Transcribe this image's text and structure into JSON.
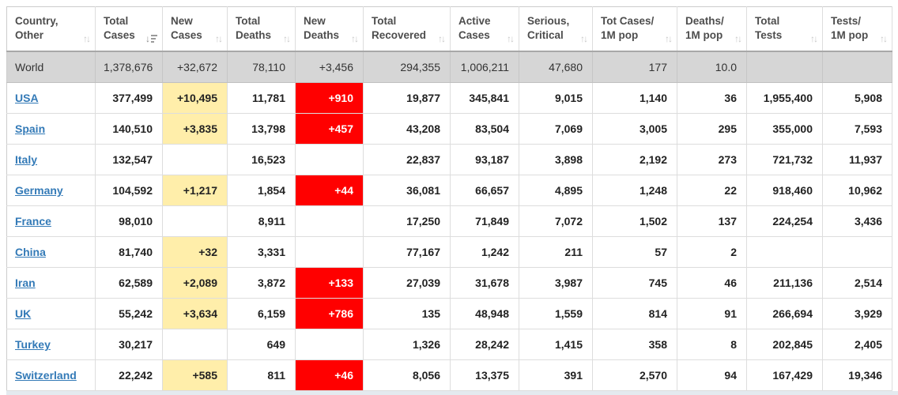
{
  "colors": {
    "link_blue": "#337ab7",
    "new_cases_bg": "#FFEEAA",
    "new_deaths_bg": "#FF0000",
    "new_deaths_text": "#FFFFFF",
    "world_row_bg": "#D6D6D6",
    "header_text": "#4D4D4D",
    "cell_text": "#222222",
    "border": "#DDDDDD"
  },
  "table": {
    "columns": [
      {
        "key": "country",
        "line1": "Country,",
        "line2": "Other",
        "sort": "none"
      },
      {
        "key": "total-cases",
        "line1": "Total",
        "line2": "Cases",
        "sort": "desc"
      },
      {
        "key": "new-cases",
        "line1": "New",
        "line2": "Cases",
        "sort": "none"
      },
      {
        "key": "total-deaths",
        "line1": "Total",
        "line2": "Deaths",
        "sort": "none"
      },
      {
        "key": "new-deaths",
        "line1": "New",
        "line2": "Deaths",
        "sort": "none"
      },
      {
        "key": "total-recovered",
        "line1": "Total",
        "line2": "Recovered",
        "sort": "none"
      },
      {
        "key": "active-cases",
        "line1": "Active",
        "line2": "Cases",
        "sort": "none"
      },
      {
        "key": "serious-critical",
        "line1": "Serious,",
        "line2": "Critical",
        "sort": "none"
      },
      {
        "key": "tot-cases-1m",
        "line1": "Tot Cases/",
        "line2": "1M pop",
        "sort": "none"
      },
      {
        "key": "deaths-1m",
        "line1": "Deaths/",
        "line2": "1M pop",
        "sort": "none"
      },
      {
        "key": "total-tests",
        "line1": "Total",
        "line2": "Tests",
        "sort": "none"
      },
      {
        "key": "tests-1m",
        "line1": "Tests/",
        "line2": "1M pop",
        "sort": "none"
      }
    ],
    "rows": [
      {
        "country": "World",
        "is_link": false,
        "is_total": true,
        "cells": [
          "1,378,676",
          "+32,672",
          "78,110",
          "+3,456",
          "294,355",
          "1,006,211",
          "47,680",
          "177",
          "10.0",
          "",
          ""
        ]
      },
      {
        "country": "USA",
        "is_link": true,
        "is_total": false,
        "cells": [
          "377,499",
          "+10,495",
          "11,781",
          "+910",
          "19,877",
          "345,841",
          "9,015",
          "1,140",
          "36",
          "1,955,400",
          "5,908"
        ]
      },
      {
        "country": "Spain",
        "is_link": true,
        "is_total": false,
        "cells": [
          "140,510",
          "+3,835",
          "13,798",
          "+457",
          "43,208",
          "83,504",
          "7,069",
          "3,005",
          "295",
          "355,000",
          "7,593"
        ]
      },
      {
        "country": "Italy",
        "is_link": true,
        "is_total": false,
        "cells": [
          "132,547",
          "",
          "16,523",
          "",
          "22,837",
          "93,187",
          "3,898",
          "2,192",
          "273",
          "721,732",
          "11,937"
        ]
      },
      {
        "country": "Germany",
        "is_link": true,
        "is_total": false,
        "cells": [
          "104,592",
          "+1,217",
          "1,854",
          "+44",
          "36,081",
          "66,657",
          "4,895",
          "1,248",
          "22",
          "918,460",
          "10,962"
        ]
      },
      {
        "country": "France",
        "is_link": true,
        "is_total": false,
        "cells": [
          "98,010",
          "",
          "8,911",
          "",
          "17,250",
          "71,849",
          "7,072",
          "1,502",
          "137",
          "224,254",
          "3,436"
        ]
      },
      {
        "country": "China",
        "is_link": true,
        "is_total": false,
        "cells": [
          "81,740",
          "+32",
          "3,331",
          "",
          "77,167",
          "1,242",
          "211",
          "57",
          "2",
          "",
          ""
        ]
      },
      {
        "country": "Iran",
        "is_link": true,
        "is_total": false,
        "cells": [
          "62,589",
          "+2,089",
          "3,872",
          "+133",
          "27,039",
          "31,678",
          "3,987",
          "745",
          "46",
          "211,136",
          "2,514"
        ]
      },
      {
        "country": "UK",
        "is_link": true,
        "is_total": false,
        "cells": [
          "55,242",
          "+3,634",
          "6,159",
          "+786",
          "135",
          "48,948",
          "1,559",
          "814",
          "91",
          "266,694",
          "3,929"
        ]
      },
      {
        "country": "Turkey",
        "is_link": true,
        "is_total": false,
        "cells": [
          "30,217",
          "",
          "649",
          "",
          "1,326",
          "28,242",
          "1,415",
          "358",
          "8",
          "202,845",
          "2,405"
        ]
      },
      {
        "country": "Switzerland",
        "is_link": true,
        "is_total": false,
        "cells": [
          "22,242",
          "+585",
          "811",
          "+46",
          "8,056",
          "13,375",
          "391",
          "2,570",
          "94",
          "167,429",
          "19,346"
        ]
      }
    ]
  }
}
